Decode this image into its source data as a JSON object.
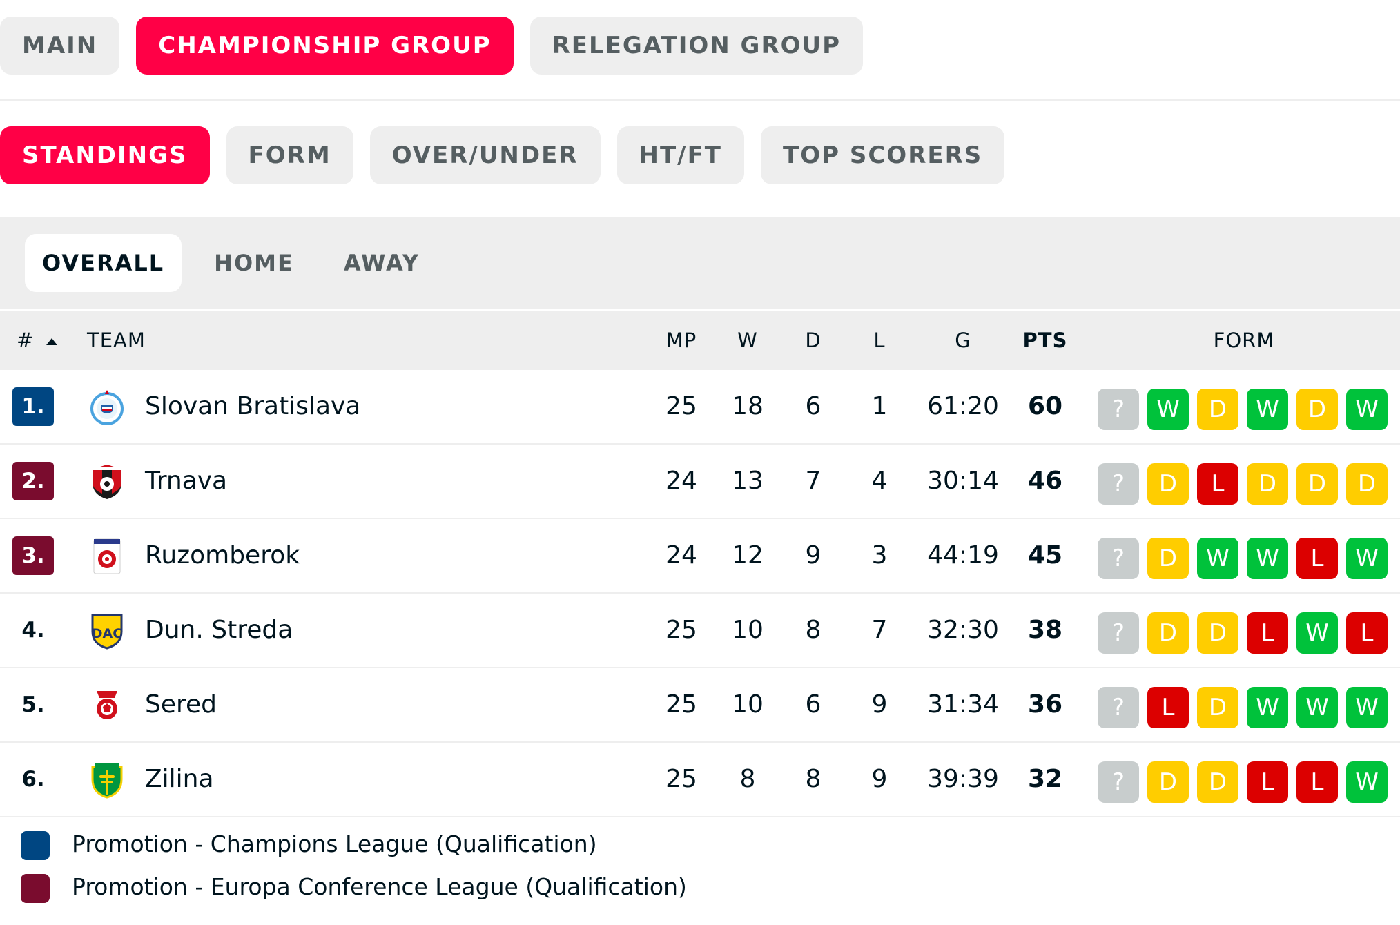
{
  "tabs_main": [
    {
      "label": "MAIN",
      "active": false
    },
    {
      "label": "CHAMPIONSHIP GROUP",
      "active": true
    },
    {
      "label": "RELEGATION GROUP",
      "active": false
    }
  ],
  "tabs_view": [
    {
      "label": "STANDINGS",
      "active": true
    },
    {
      "label": "FORM",
      "active": false
    },
    {
      "label": "OVER/UNDER",
      "active": false
    },
    {
      "label": "HT/FT",
      "active": false
    },
    {
      "label": "TOP SCORERS",
      "active": false
    }
  ],
  "tabs_venue": [
    {
      "label": "OVERALL",
      "active": true
    },
    {
      "label": "HOME",
      "active": false
    },
    {
      "label": "AWAY",
      "active": false
    }
  ],
  "table": {
    "headers": {
      "rank": "#",
      "team": "TEAM",
      "mp": "MP",
      "w": "W",
      "d": "D",
      "l": "L",
      "g": "G",
      "pts": "PTS",
      "form": "FORM"
    },
    "sort_icon": "caret-up-icon",
    "rows": [
      {
        "rank": "1.",
        "zone": "cl",
        "team": "Slovan Bratislava",
        "crest": "slovan-bratislava-crest",
        "mp": "25",
        "w": "18",
        "d": "6",
        "l": "1",
        "g": "61:20",
        "pts": "60",
        "form": [
          "?",
          "W",
          "D",
          "W",
          "D",
          "W"
        ]
      },
      {
        "rank": "2.",
        "zone": "ecl",
        "team": "Trnava",
        "crest": "trnava-crest",
        "mp": "24",
        "w": "13",
        "d": "7",
        "l": "4",
        "g": "30:14",
        "pts": "46",
        "form": [
          "?",
          "D",
          "L",
          "D",
          "D",
          "D"
        ]
      },
      {
        "rank": "3.",
        "zone": "ecl",
        "team": "Ruzomberok",
        "crest": "ruzomberok-crest",
        "mp": "24",
        "w": "12",
        "d": "9",
        "l": "3",
        "g": "44:19",
        "pts": "45",
        "form": [
          "?",
          "D",
          "W",
          "W",
          "L",
          "W"
        ]
      },
      {
        "rank": "4.",
        "zone": "",
        "team": "Dun. Streda",
        "crest": "dunajska-streda-crest",
        "mp": "25",
        "w": "10",
        "d": "8",
        "l": "7",
        "g": "32:30",
        "pts": "38",
        "form": [
          "?",
          "D",
          "D",
          "L",
          "W",
          "L"
        ]
      },
      {
        "rank": "5.",
        "zone": "",
        "team": "Sered",
        "crest": "sered-crest",
        "mp": "25",
        "w": "10",
        "d": "6",
        "l": "9",
        "g": "31:34",
        "pts": "36",
        "form": [
          "?",
          "L",
          "D",
          "W",
          "W",
          "W"
        ]
      },
      {
        "rank": "6.",
        "zone": "",
        "team": "Zilina",
        "crest": "zilina-crest",
        "mp": "25",
        "w": "8",
        "d": "8",
        "l": "9",
        "g": "39:39",
        "pts": "32",
        "form": [
          "?",
          "D",
          "D",
          "L",
          "L",
          "W"
        ]
      }
    ]
  },
  "legend": [
    {
      "label": "Promotion - Champions League (Qualification)",
      "color": "#004682"
    },
    {
      "label": "Promotion - Europa Conference League (Qualification)",
      "color": "#7a0c2e"
    }
  ],
  "colors": {
    "accent": "#ff0046",
    "win": "#00c23b",
    "draw": "#ffcd00",
    "loss": "#dc0000",
    "unknown": "#c8cdcd"
  }
}
